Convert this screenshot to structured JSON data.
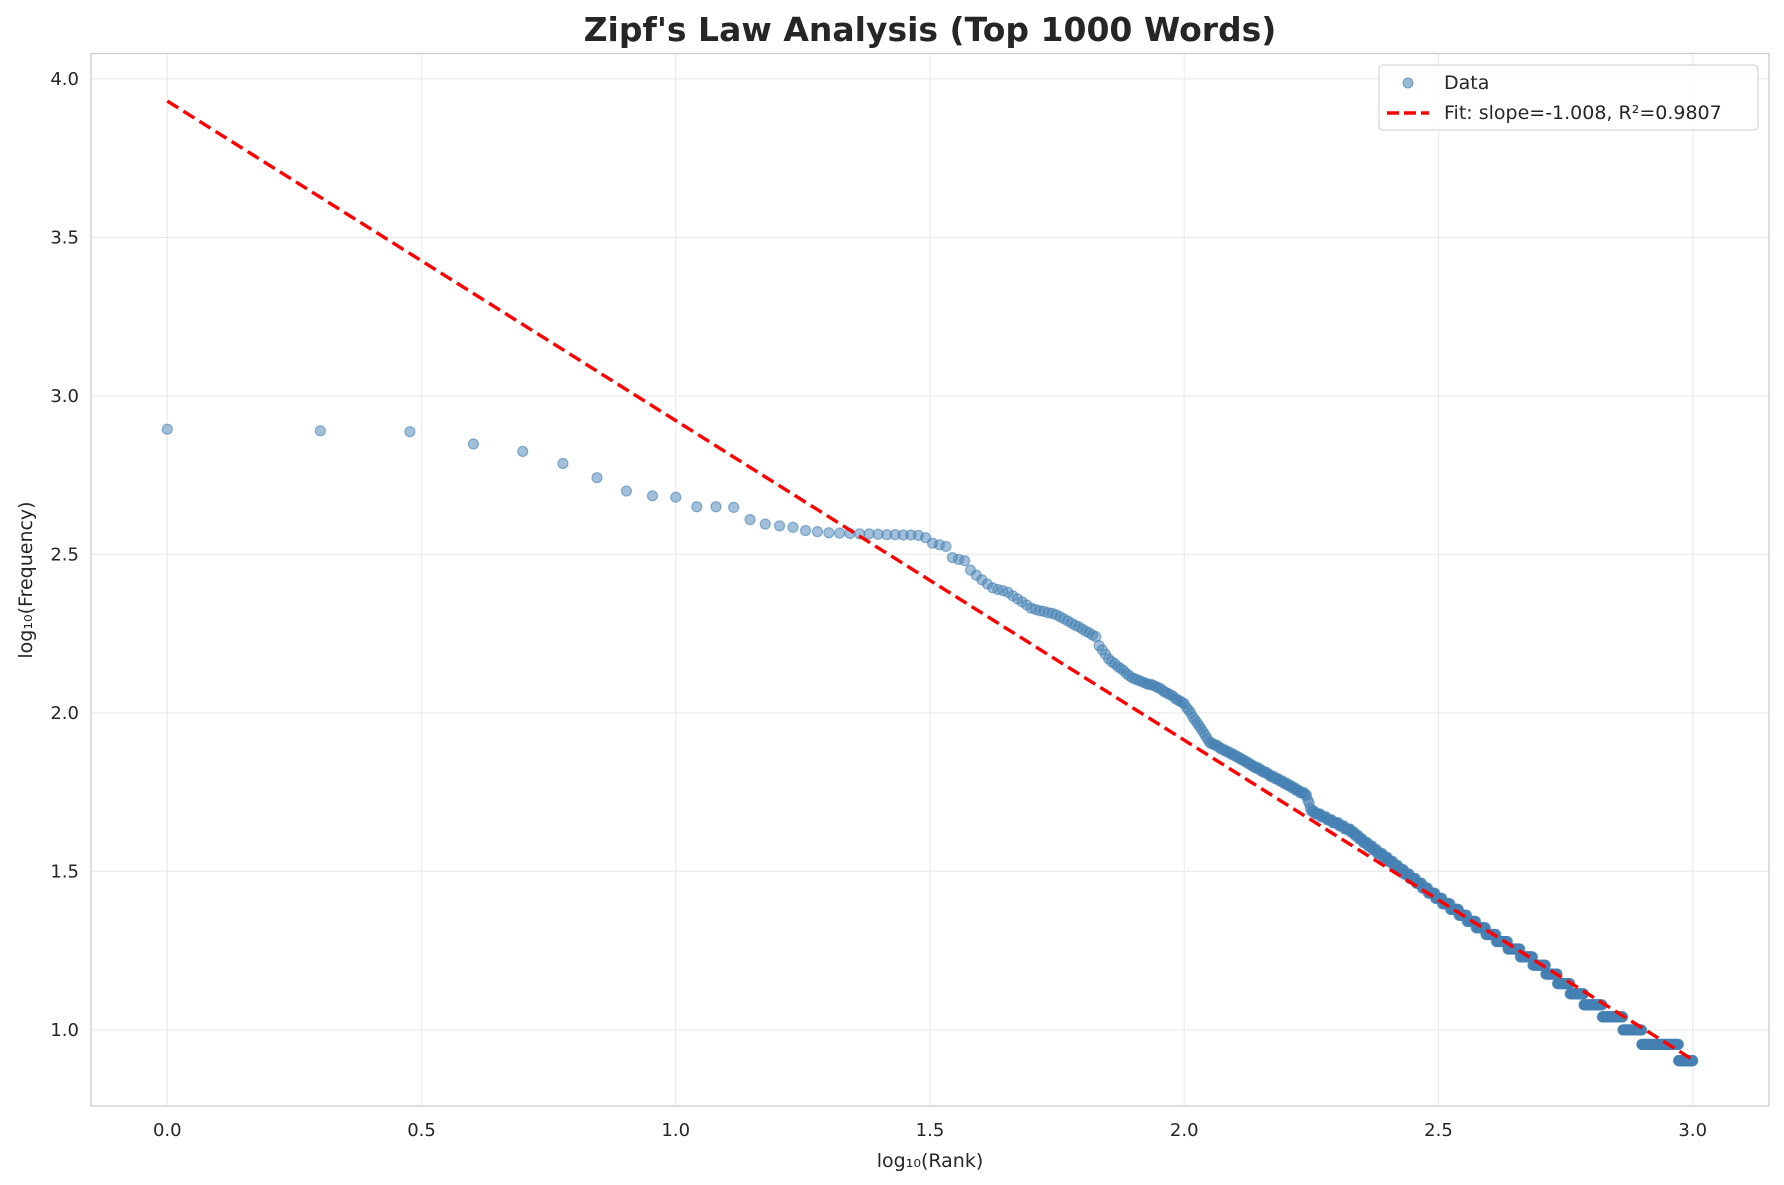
{
  "chart_data": {
    "type": "scatter",
    "title": "Zipf's Law Analysis (Top 1000 Words)",
    "xlabel": "log₁₀(Rank)",
    "ylabel": "log₁₀(Frequency)",
    "xlim": [
      -0.15,
      3.15
    ],
    "ylim": [
      0.76,
      4.08
    ],
    "xticks": [
      "0.0",
      "0.5",
      "1.0",
      "1.5",
      "2.0",
      "2.5",
      "3.0"
    ],
    "yticks": [
      "1.0",
      "1.5",
      "2.0",
      "2.5",
      "3.0",
      "3.5",
      "4.0"
    ],
    "grid": true,
    "legend_position": "top-right",
    "legend": [
      "Data",
      "Fit: slope=-1.008, R²=0.9807"
    ],
    "series": [
      {
        "name": "Data",
        "kind": "scatter",
        "color": "#4682b4",
        "rank_range": [
          1,
          1000
        ],
        "rank_frequency_anchors": [
          [
            1,
            785
          ],
          [
            2,
            776
          ],
          [
            3,
            771
          ],
          [
            4,
            705
          ],
          [
            5,
            668
          ],
          [
            6,
            612
          ],
          [
            7,
            552
          ],
          [
            8,
            501
          ],
          [
            9,
            484
          ],
          [
            10,
            479
          ],
          [
            11,
            447
          ],
          [
            12,
            447
          ],
          [
            13,
            445
          ],
          [
            14,
            407
          ],
          [
            15,
            394
          ],
          [
            16,
            389
          ],
          [
            17,
            385
          ],
          [
            18,
            376
          ],
          [
            19,
            373
          ],
          [
            20,
            370
          ],
          [
            22,
            368
          ],
          [
            30,
            363
          ],
          [
            31,
            357
          ],
          [
            32,
            343
          ],
          [
            34,
            335
          ],
          [
            35,
            309
          ],
          [
            37,
            302
          ],
          [
            38,
            282
          ],
          [
            40,
            263
          ],
          [
            42,
            248
          ],
          [
            45,
            240
          ],
          [
            50,
            214
          ],
          [
            56,
            204
          ],
          [
            63,
            184
          ],
          [
            67,
            174
          ],
          [
            68,
            163
          ],
          [
            71,
            148
          ],
          [
            79,
            129
          ],
          [
            89,
            120
          ],
          [
            100,
            107
          ],
          [
            112,
            81
          ],
          [
            174,
            55
          ],
          [
            178,
            49
          ],
          [
            210,
            43
          ],
          [
            316,
            26
          ],
          [
            400,
            20
          ],
          [
            500,
            16
          ],
          [
            631,
            12
          ],
          [
            700,
            11
          ],
          [
            760,
            10
          ],
          [
            830,
            9
          ],
          [
            935,
            9
          ],
          [
            940,
            8
          ],
          [
            1000,
            8
          ]
        ]
      },
      {
        "name": "Fit: slope=-1.008, R²=0.9807",
        "kind": "line",
        "style": "dashed",
        "color": "#ff0000",
        "slope": -1.008,
        "intercept": 3.93,
        "x_range": [
          0,
          3.0
        ]
      }
    ]
  }
}
